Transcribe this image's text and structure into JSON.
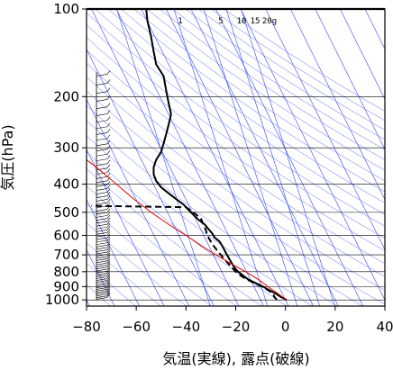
{
  "chart_data": {
    "type": "line",
    "xlabel": "気温(実線), 露点(破線)",
    "ylabel": "気圧(hPa)",
    "xlim": [
      -80,
      40
    ],
    "ylim": [
      1050,
      100
    ],
    "y_scale": "log",
    "x_ticks": [
      "−80",
      "−60",
      "−40",
      "−20",
      "0",
      "20",
      "40"
    ],
    "y_ticks": [
      {
        "p": 100,
        "label": "100"
      },
      {
        "p": 200,
        "label": "200"
      },
      {
        "p": 300,
        "label": "300"
      },
      {
        "p": 400,
        "label": "400"
      },
      {
        "p": 500,
        "label": "500"
      },
      {
        "p": 600,
        "label": "600"
      },
      {
        "p": 700,
        "label": "700"
      },
      {
        "p": 800,
        "label": "800"
      },
      {
        "p": 900,
        "label": "900"
      },
      {
        "p": 1000,
        "label": "1000"
      }
    ],
    "mixing_ratio_labels": [
      "1",
      "5",
      "10",
      "15",
      "20g"
    ],
    "grid": true,
    "series": [
      {
        "kind": "temperature",
        "style": "solid",
        "color": "#000000",
        "points": [
          [
            1000,
            0.5
          ],
          [
            975,
            -2
          ],
          [
            950,
            -4
          ],
          [
            925,
            -6.5
          ],
          [
            900,
            -9
          ],
          [
            875,
            -12
          ],
          [
            850,
            -15
          ],
          [
            825,
            -17
          ],
          [
            800,
            -19
          ],
          [
            775,
            -20.5
          ],
          [
            750,
            -21.5
          ],
          [
            725,
            -22.5
          ],
          [
            700,
            -23.5
          ],
          [
            675,
            -24.5
          ],
          [
            650,
            -25.5
          ],
          [
            630,
            -26.5
          ],
          [
            610,
            -28.5
          ],
          [
            590,
            -29.5
          ],
          [
            570,
            -31
          ],
          [
            550,
            -32.5
          ],
          [
            530,
            -35
          ],
          [
            510,
            -37
          ],
          [
            490,
            -39
          ],
          [
            470,
            -41
          ],
          [
            450,
            -44
          ],
          [
            430,
            -47
          ],
          [
            410,
            -50
          ],
          [
            390,
            -52
          ],
          [
            370,
            -53
          ],
          [
            350,
            -53
          ],
          [
            330,
            -52
          ],
          [
            310,
            -50
          ],
          [
            290,
            -49
          ],
          [
            270,
            -48
          ],
          [
            250,
            -47
          ],
          [
            230,
            -46
          ],
          [
            210,
            -47
          ],
          [
            190,
            -48
          ],
          [
            170,
            -49
          ],
          [
            155,
            -52
          ],
          [
            140,
            -53
          ],
          [
            125,
            -54
          ],
          [
            110,
            -55.5
          ],
          [
            100,
            -56
          ]
        ]
      },
      {
        "kind": "dewpoint",
        "style": "dashed",
        "color": "#000000",
        "points": [
          [
            1000,
            -3.5
          ],
          [
            975,
            -4.5
          ],
          [
            950,
            -5
          ],
          [
            925,
            -7
          ],
          [
            900,
            -9.5
          ],
          [
            875,
            -12.5
          ],
          [
            850,
            -15.5
          ],
          [
            825,
            -18
          ],
          [
            800,
            -20
          ],
          [
            775,
            -21.5
          ],
          [
            750,
            -23
          ],
          [
            725,
            -24.5
          ],
          [
            700,
            -26
          ],
          [
            675,
            -27.5
          ],
          [
            650,
            -29
          ],
          [
            630,
            -30
          ],
          [
            600,
            -31.5
          ],
          [
            575,
            -32
          ],
          [
            550,
            -33
          ],
          [
            525,
            -34
          ],
          [
            500,
            -37
          ],
          [
            480,
            -40
          ],
          [
            475,
            -78
          ]
        ]
      },
      {
        "kind": "parcel",
        "style": "solid",
        "color": "#e00000",
        "points": [
          [
            1000,
            0.5
          ],
          [
            900,
            -7
          ],
          [
            850,
            -11
          ],
          [
            800,
            -16
          ],
          [
            750,
            -22
          ],
          [
            700,
            -28
          ],
          [
            650,
            -34
          ],
          [
            600,
            -40
          ],
          [
            550,
            -47
          ],
          [
            500,
            -54
          ],
          [
            450,
            -61
          ],
          [
            400,
            -68
          ],
          [
            350,
            -76
          ],
          [
            330,
            -80
          ]
        ]
      }
    ]
  }
}
